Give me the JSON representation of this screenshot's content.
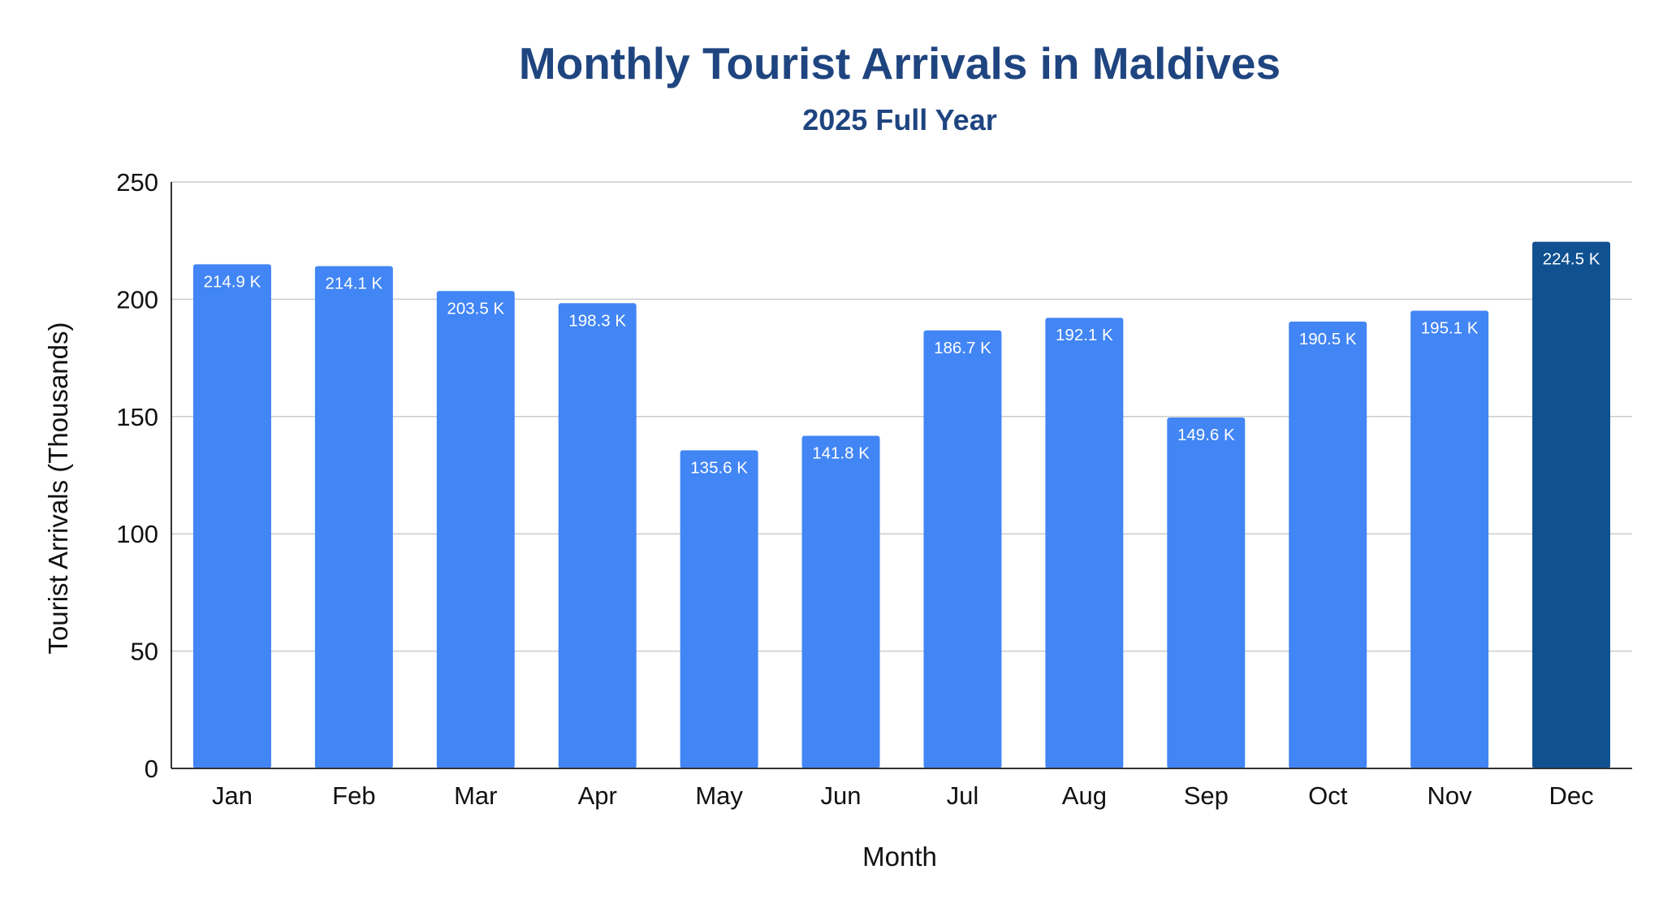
{
  "chart_data": {
    "type": "bar",
    "title": "Monthly Tourist Arrivals in Maldives",
    "subtitle": "2025 Full Year",
    "xlabel": "Month",
    "ylabel": "Tourist Arrivals (Thousands)",
    "categories": [
      "Jan",
      "Feb",
      "Mar",
      "Apr",
      "May",
      "Jun",
      "Jul",
      "Aug",
      "Sep",
      "Oct",
      "Nov",
      "Dec"
    ],
    "values": [
      214.9,
      214.1,
      203.5,
      198.3,
      135.6,
      141.8,
      186.7,
      192.1,
      149.6,
      190.5,
      195.1,
      224.5
    ],
    "data_labels": [
      "214.9 K",
      "214.1 K",
      "203.5 K",
      "198.3 K",
      "135.6 K",
      "141.8 K",
      "186.7 K",
      "192.1 K",
      "149.6 K",
      "190.5 K",
      "195.1 K",
      "224.5 K"
    ],
    "ylim": [
      0,
      250
    ],
    "yticks": [
      0,
      50,
      100,
      150,
      200,
      250
    ],
    "grid": true,
    "legend": "none",
    "colors": {
      "bar": "#4285f4",
      "highlight_bar": "#0f5191",
      "title": "#1f4580",
      "gridline": "#cccccc",
      "axis": "#333333"
    },
    "highlight_category": "Dec"
  }
}
